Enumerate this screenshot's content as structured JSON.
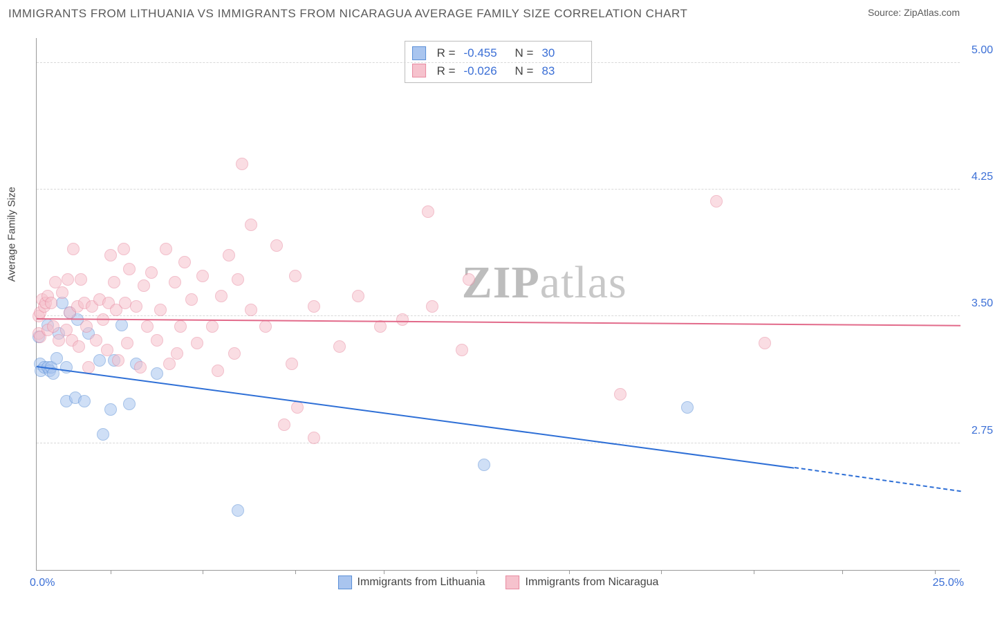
{
  "header": {
    "title": "IMMIGRANTS FROM LITHUANIA VS IMMIGRANTS FROM NICARAGUA AVERAGE FAMILY SIZE CORRELATION CHART",
    "source_label": "Source: ",
    "source_value": "ZipAtlas.com"
  },
  "watermark": {
    "part1": "ZIP",
    "part2": "atlas"
  },
  "chart": {
    "type": "scatter-with-trend",
    "background_color": "#ffffff",
    "grid_color": "#d8d8d8",
    "axis_color": "#999999",
    "text_color": "#444444",
    "value_color": "#3b6fd6",
    "y_axis_label": "Average Family Size",
    "x_min": 0.0,
    "x_max": 25.0,
    "x_min_label": "0.0%",
    "x_max_label": "25.0%",
    "y_min": 2.0,
    "y_max": 5.15,
    "y_ticks": [
      2.75,
      3.5,
      4.25,
      5.0
    ],
    "y_tick_labels": [
      "2.75",
      "3.50",
      "4.25",
      "5.00"
    ],
    "x_tick_positions": [
      2.0,
      4.5,
      7.0,
      9.4,
      11.9,
      14.4,
      16.9,
      19.4,
      21.8,
      24.3
    ],
    "point_radius": 9,
    "point_opacity": 0.55,
    "series": [
      {
        "key": "lithuania",
        "label": "Immigrants from Lithuania",
        "fill_color": "#a9c5ef",
        "stroke_color": "#5a8fd6",
        "trend_color": "#2e6fd6",
        "R": "-0.455",
        "N": "30",
        "trend": {
          "x1": 0.0,
          "y1": 3.2,
          "x2_solid": 20.5,
          "y2_solid": 2.6,
          "x2_dash": 25.0,
          "y2_dash": 2.46
        },
        "points": [
          [
            0.05,
            3.38
          ],
          [
            0.1,
            3.22
          ],
          [
            0.12,
            3.18
          ],
          [
            0.2,
            3.2
          ],
          [
            0.3,
            3.45
          ],
          [
            0.3,
            3.2
          ],
          [
            0.35,
            3.18
          ],
          [
            0.4,
            3.2
          ],
          [
            0.45,
            3.16
          ],
          [
            0.55,
            3.25
          ],
          [
            0.6,
            3.4
          ],
          [
            0.7,
            3.58
          ],
          [
            0.8,
            3.2
          ],
          [
            0.8,
            3.0
          ],
          [
            0.9,
            3.52
          ],
          [
            1.05,
            3.02
          ],
          [
            1.1,
            3.48
          ],
          [
            1.3,
            3.0
          ],
          [
            1.4,
            3.4
          ],
          [
            1.7,
            3.24
          ],
          [
            1.8,
            2.8
          ],
          [
            2.0,
            2.95
          ],
          [
            2.1,
            3.24
          ],
          [
            2.3,
            3.45
          ],
          [
            2.5,
            2.98
          ],
          [
            2.7,
            3.22
          ],
          [
            3.25,
            3.16
          ],
          [
            5.45,
            2.35
          ],
          [
            12.1,
            2.62
          ],
          [
            17.6,
            2.96
          ]
        ]
      },
      {
        "key": "nicaragua",
        "label": "Immigrants from Nicaragua",
        "fill_color": "#f6c2cd",
        "stroke_color": "#e88aa0",
        "trend_color": "#e26a8a",
        "R": "-0.026",
        "N": "83",
        "trend": {
          "x1": 0.0,
          "y1": 3.48,
          "x2_solid": 25.0,
          "y2_solid": 3.44,
          "x2_dash": 25.0,
          "y2_dash": 3.44
        },
        "points": [
          [
            0.05,
            3.5
          ],
          [
            0.05,
            3.4
          ],
          [
            0.1,
            3.52
          ],
          [
            0.1,
            3.38
          ],
          [
            0.15,
            3.6
          ],
          [
            0.2,
            3.56
          ],
          [
            0.25,
            3.58
          ],
          [
            0.3,
            3.62
          ],
          [
            0.3,
            3.42
          ],
          [
            0.4,
            3.58
          ],
          [
            0.45,
            3.44
          ],
          [
            0.5,
            3.7
          ],
          [
            0.6,
            3.36
          ],
          [
            0.7,
            3.64
          ],
          [
            0.8,
            3.42
          ],
          [
            0.85,
            3.72
          ],
          [
            0.9,
            3.52
          ],
          [
            0.95,
            3.36
          ],
          [
            1.0,
            3.9
          ],
          [
            1.1,
            3.56
          ],
          [
            1.15,
            3.32
          ],
          [
            1.2,
            3.72
          ],
          [
            1.3,
            3.58
          ],
          [
            1.35,
            3.44
          ],
          [
            1.4,
            3.2
          ],
          [
            1.5,
            3.56
          ],
          [
            1.6,
            3.36
          ],
          [
            1.7,
            3.6
          ],
          [
            1.8,
            3.48
          ],
          [
            1.9,
            3.3
          ],
          [
            1.95,
            3.58
          ],
          [
            2.0,
            3.86
          ],
          [
            2.1,
            3.7
          ],
          [
            2.15,
            3.54
          ],
          [
            2.2,
            3.24
          ],
          [
            2.35,
            3.9
          ],
          [
            2.4,
            3.58
          ],
          [
            2.45,
            3.34
          ],
          [
            2.5,
            3.78
          ],
          [
            2.7,
            3.56
          ],
          [
            2.8,
            3.2
          ],
          [
            2.9,
            3.68
          ],
          [
            3.0,
            3.44
          ],
          [
            3.1,
            3.76
          ],
          [
            3.25,
            3.36
          ],
          [
            3.35,
            3.54
          ],
          [
            3.5,
            3.9
          ],
          [
            3.6,
            3.22
          ],
          [
            3.75,
            3.7
          ],
          [
            3.8,
            3.28
          ],
          [
            3.9,
            3.44
          ],
          [
            4.0,
            3.82
          ],
          [
            4.2,
            3.6
          ],
          [
            4.35,
            3.34
          ],
          [
            4.5,
            3.74
          ],
          [
            4.75,
            3.44
          ],
          [
            4.9,
            3.18
          ],
          [
            5.0,
            3.62
          ],
          [
            5.2,
            3.86
          ],
          [
            5.35,
            3.28
          ],
          [
            5.45,
            3.72
          ],
          [
            5.55,
            4.4
          ],
          [
            5.8,
            3.54
          ],
          [
            5.8,
            4.04
          ],
          [
            6.2,
            3.44
          ],
          [
            6.5,
            3.92
          ],
          [
            6.7,
            2.86
          ],
          [
            6.9,
            3.22
          ],
          [
            7.0,
            3.74
          ],
          [
            7.05,
            2.96
          ],
          [
            7.5,
            2.78
          ],
          [
            7.5,
            3.56
          ],
          [
            8.2,
            3.32
          ],
          [
            8.7,
            3.62
          ],
          [
            9.3,
            3.44
          ],
          [
            9.9,
            3.48
          ],
          [
            10.6,
            4.12
          ],
          [
            10.7,
            3.56
          ],
          [
            11.5,
            3.3
          ],
          [
            11.7,
            3.72
          ],
          [
            15.8,
            3.04
          ],
          [
            18.4,
            4.18
          ],
          [
            19.7,
            3.34
          ]
        ]
      }
    ],
    "legend_top": {
      "r_label": "R =",
      "n_label": "N ="
    }
  }
}
